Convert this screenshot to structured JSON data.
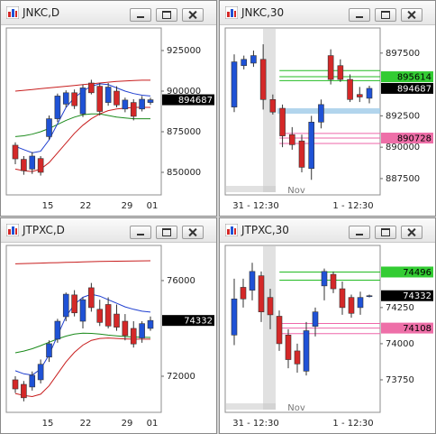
{
  "candle_colors": {
    "up": "#1f52d6",
    "down": "#d42828"
  },
  "windows": [
    {
      "title": "JNKC,D",
      "chart": {
        "type": "candlestick",
        "ylim": [
          836100,
          938900
        ],
        "yticks": [
          925000,
          900000,
          875000,
          850000
        ],
        "xlabels": [
          "15",
          "22",
          "29",
          "01"
        ],
        "candles": [
          [
            866700,
            868500,
            855000,
            858300
          ],
          [
            858000,
            860000,
            848500,
            851000
          ],
          [
            852000,
            862500,
            849000,
            860000
          ],
          [
            858500,
            860000,
            848000,
            850000
          ],
          [
            872000,
            885000,
            870000,
            883000
          ],
          [
            883000,
            898500,
            881000,
            897000
          ],
          [
            892000,
            900500,
            890000,
            899000
          ],
          [
            899000,
            901000,
            889000,
            891000
          ],
          [
            886000,
            904000,
            884000,
            902000
          ],
          [
            905000,
            907000,
            898000,
            899000
          ],
          [
            903000,
            905000,
            885000,
            887500
          ],
          [
            893000,
            905000,
            891000,
            902500
          ],
          [
            900000,
            903000,
            890000,
            891500
          ],
          [
            889000,
            896000,
            887000,
            894500
          ],
          [
            893000,
            895000,
            882000,
            884500
          ],
          [
            889000,
            897000,
            887500,
            895000
          ],
          [
            893000,
            896000,
            891500,
            894687
          ]
        ],
        "bands": [
          {
            "color": "#c81e1e",
            "values": [
              900000,
              900500,
              901000,
              901500,
              902000,
              902500,
              903000,
              903500,
              904000,
              904500,
              905000,
              905500,
              906000,
              906300,
              906500,
              906700,
              906700
            ]
          },
          {
            "color": "#1a8a1a",
            "values": [
              872000,
              872500,
              873500,
              875000,
              877000,
              879500,
              882000,
              884000,
              885500,
              886000,
              886000,
              885000,
              884000,
              883500,
              883000,
              883000,
              883000
            ]
          },
          {
            "color": "#1f3fd0",
            "values": [
              866000,
              864000,
              862000,
              863000,
              870000,
              880000,
              890000,
              896000,
              900000,
              903000,
              904500,
              904000,
              902000,
              900000,
              898500,
              897500,
              897000
            ]
          },
          {
            "color": "#c81e1e",
            "values": [
              852000,
              851000,
              850500,
              852000,
              856000,
              862000,
              868000,
              874000,
              879000,
              883000,
              886000,
              888000,
              889000,
              889500,
              890000,
              890000,
              890000
            ]
          }
        ],
        "levels": [],
        "price_tags": [
          {
            "value": 894687,
            "color": "#000000",
            "text_color": "#ffffff"
          }
        ]
      }
    },
    {
      "title": "JNKC,30",
      "chart": {
        "type": "candlestick",
        "ylim": [
          886200,
          899500
        ],
        "yticks": [
          897500,
          892500,
          890000,
          887500
        ],
        "xlabels": [
          "31 - 12:30",
          "Nov",
          "1 - 12:30"
        ],
        "candles": [
          [
            893200,
            897400,
            892800,
            896800
          ],
          [
            896500,
            897300,
            896200,
            897000
          ],
          [
            896700,
            897700,
            896400,
            897300
          ],
          [
            897000,
            898200,
            893000,
            893800
          ],
          [
            893800,
            894200,
            892600,
            892800
          ],
          [
            893100,
            893400,
            890000,
            890900
          ],
          [
            891000,
            891600,
            889800,
            890200
          ],
          [
            890500,
            891000,
            888000,
            888400
          ],
          [
            888300,
            892500,
            887400,
            892000
          ],
          [
            892000,
            893800,
            891500,
            893400
          ],
          [
            897300,
            897800,
            895000,
            895400
          ],
          [
            896500,
            897000,
            895200,
            895400
          ],
          [
            895400,
            895800,
            893600,
            893800
          ],
          [
            894200,
            894800,
            893600,
            894000
          ],
          [
            893900,
            894900,
            893500,
            894687
          ]
        ],
        "bands": [],
        "levels": [
          {
            "value": 896100,
            "color": "#22bb22"
          },
          {
            "value": 895614,
            "color": "#22bb22"
          },
          {
            "value": 895300,
            "color": "#22bb22"
          },
          {
            "value": 891100,
            "color": "#ee66aa"
          },
          {
            "value": 890728,
            "color": "#ee66aa"
          },
          {
            "value": 890300,
            "color": "#ee66aa"
          }
        ],
        "price_tags": [
          {
            "value": 895614,
            "color": "#33cc33",
            "text_color": "#000000"
          },
          {
            "value": 894687,
            "color": "#000000",
            "text_color": "#ffffff"
          },
          {
            "value": 890728,
            "color": "#ee6fa8",
            "text_color": "#000000"
          }
        ]
      }
    },
    {
      "title": "JTPXC,D",
      "chart": {
        "type": "candlestick",
        "ylim": [
          70490,
          77470
        ],
        "yticks": [
          76000,
          72000
        ],
        "xlabels": [
          "15",
          "22",
          "29",
          "01"
        ],
        "candles": [
          [
            71850,
            72000,
            71300,
            71470
          ],
          [
            71660,
            71800,
            70950,
            71100
          ],
          [
            71550,
            72200,
            71400,
            72040
          ],
          [
            71850,
            72700,
            71700,
            72500
          ],
          [
            72800,
            73500,
            72600,
            73360
          ],
          [
            73550,
            74400,
            73400,
            74300
          ],
          [
            74490,
            75500,
            74300,
            75430
          ],
          [
            75400,
            75600,
            74500,
            74650
          ],
          [
            74300,
            75300,
            74000,
            75200
          ],
          [
            75700,
            75900,
            74700,
            74870
          ],
          [
            74800,
            75200,
            74100,
            74250
          ],
          [
            75000,
            75300,
            74000,
            74100
          ],
          [
            74600,
            75000,
            73900,
            74050
          ],
          [
            74300,
            74600,
            73500,
            73700
          ],
          [
            74000,
            74300,
            73200,
            73350
          ],
          [
            73600,
            74300,
            73400,
            74200
          ],
          [
            74000,
            74500,
            73900,
            74332
          ]
        ],
        "bands": [
          {
            "color": "#c81e1e",
            "values": [
              76700,
              76710,
              76720,
              76730,
              76740,
              76750,
              76760,
              76770,
              76780,
              76790,
              76800,
              76805,
              76810,
              76815,
              76820,
              76825,
              76830
            ]
          },
          {
            "color": "#1a8a1a",
            "values": [
              72980,
              73050,
              73150,
              73280,
              73420,
              73560,
              73680,
              73760,
              73800,
              73790,
              73760,
              73720,
              73690,
              73660,
              73640,
              73630,
              73620
            ]
          },
          {
            "color": "#1f3fd0",
            "values": [
              72230,
              72100,
              72050,
              72300,
              72900,
              73700,
              74500,
              75000,
              75300,
              75430,
              75350,
              75200,
              75050,
              74900,
              74800,
              74720,
              74680
            ]
          },
          {
            "color": "#c81e1e",
            "values": [
              71280,
              71200,
              71150,
              71250,
              71600,
              72100,
              72600,
              73000,
              73300,
              73500,
              73580,
              73600,
              73580,
              73560,
              73550,
              73550,
              73550
            ]
          }
        ],
        "levels": [],
        "price_tags": [
          {
            "value": 74332,
            "color": "#000000",
            "text_color": "#ffffff"
          }
        ]
      }
    },
    {
      "title": "JTPXC,30",
      "chart": {
        "type": "candlestick",
        "ylim": [
          73525,
          74680
        ],
        "yticks": [
          74250,
          74000,
          73750
        ],
        "xlabels": [
          "31 - 12:30",
          "Nov",
          "1 - 12:30"
        ],
        "candles": [
          [
            74060,
            74450,
            73990,
            74310
          ],
          [
            74390,
            74450,
            74250,
            74310
          ],
          [
            74370,
            74560,
            74300,
            74500
          ],
          [
            74470,
            74500,
            74150,
            74220
          ],
          [
            74320,
            74380,
            74100,
            74200
          ],
          [
            74190,
            74230,
            73950,
            74000
          ],
          [
            74060,
            74100,
            73830,
            73890
          ],
          [
            73950,
            74000,
            73800,
            73860
          ],
          [
            73810,
            74150,
            73780,
            74090
          ],
          [
            74120,
            74250,
            74050,
            74220
          ],
          [
            74400,
            74520,
            74300,
            74500
          ],
          [
            74480,
            74500,
            74350,
            74380
          ],
          [
            74380,
            74430,
            74200,
            74250
          ],
          [
            74320,
            74340,
            74180,
            74210
          ],
          [
            74250,
            74360,
            74200,
            74320
          ],
          [
            74330,
            74340,
            74320,
            74332
          ]
        ],
        "bands": [],
        "levels": [
          {
            "value": 74496,
            "color": "#22bb22"
          },
          {
            "value": 74440,
            "color": "#22bb22"
          },
          {
            "value": 74140,
            "color": "#ee66aa"
          },
          {
            "value": 74108,
            "color": "#ee66aa"
          },
          {
            "value": 74070,
            "color": "#ee66aa"
          }
        ],
        "price_tags": [
          {
            "value": 74496,
            "color": "#33cc33",
            "text_color": "#000000"
          },
          {
            "value": 74332,
            "color": "#000000",
            "text_color": "#ffffff"
          },
          {
            "value": 74108,
            "color": "#ee6fa8",
            "text_color": "#000000"
          }
        ]
      }
    }
  ]
}
